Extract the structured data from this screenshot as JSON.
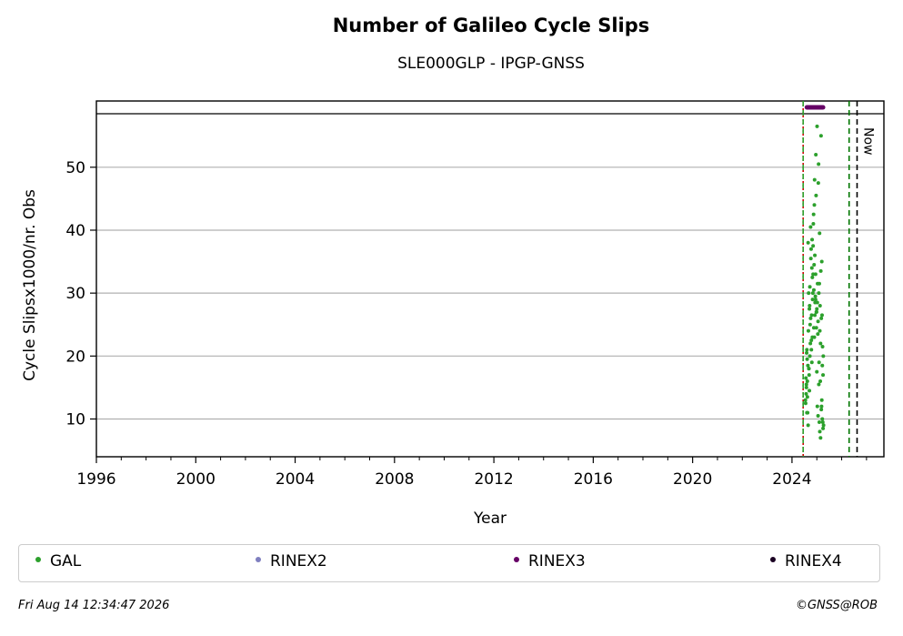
{
  "chart_data": {
    "type": "scatter",
    "title": "Number of Galileo Cycle Slips",
    "subtitle": "SLE000GLP - IPGP-GNSS",
    "xlabel": "Year",
    "ylabel": "Cycle Slipsx1000/nr. Obs",
    "xlim": [
      1996,
      2027.7
    ],
    "ylim": [
      4,
      58.5
    ],
    "x_ticks": [
      "1996",
      "2000",
      "2004",
      "2008",
      "2012",
      "2016",
      "2020",
      "2024"
    ],
    "y_ticks": [
      "10",
      "20",
      "30",
      "40",
      "50"
    ],
    "grid": "horizontal",
    "vertical_lines": [
      {
        "x": 2024.45,
        "color": "#cc0000",
        "style": "dotted"
      },
      {
        "x": 2024.45,
        "color": "#2ca02c",
        "style": "dashed"
      },
      {
        "x": 2026.3,
        "color": "#007700",
        "style": "dashed"
      },
      {
        "x": 2026.62,
        "color": "#000000",
        "style": "dashed",
        "label": "Now"
      }
    ],
    "rinex3_band": {
      "x_start": 2024.6,
      "x_end": 2025.25,
      "color": "#660066"
    },
    "series": [
      {
        "name": "GAL",
        "color": "#2ca02c",
        "x": [
          2024.55,
          2024.58,
          2024.6,
          2024.62,
          2024.65,
          2024.68,
          2024.7,
          2024.72,
          2024.75,
          2024.78,
          2024.8,
          2024.83,
          2024.85,
          2024.88,
          2024.9,
          2024.93,
          2024.95,
          2024.98,
          2025.0,
          2025.02,
          2025.05,
          2025.08,
          2025.1,
          2025.12,
          2025.15,
          2025.18,
          2025.2,
          2025.22,
          2025.25,
          2025.27,
          2024.56,
          2024.61,
          2024.66,
          2024.71,
          2024.76,
          2024.81,
          2024.86,
          2024.91,
          2024.96,
          2025.01,
          2025.06,
          2025.11,
          2025.16,
          2025.21,
          2025.26,
          2024.57,
          2024.63,
          2024.69,
          2024.74,
          2024.79,
          2024.84,
          2024.89,
          2024.94,
          2024.99,
          2025.04,
          2025.09,
          2025.14,
          2025.19,
          2025.24,
          2024.59,
          2024.64,
          2024.73,
          2024.82,
          2024.92,
          2025.03,
          2025.13,
          2025.23,
          2024.67,
          2024.77,
          2024.87,
          2024.97,
          2025.07,
          2025.17,
          2024.54,
          2024.6,
          2024.7,
          2024.8,
          2024.9,
          2025.0,
          2025.1,
          2025.2,
          2024.65,
          2024.75,
          2024.85,
          2024.95,
          2025.05,
          2025.15,
          2025.25,
          2024.58,
          2024.68,
          2024.78,
          2024.88,
          2024.98,
          2025.08,
          2025.18,
          2024.62,
          2024.72,
          2024.82,
          2024.92,
          2025.02,
          2025.12,
          2025.22
        ],
        "y": [
          12.5,
          15.0,
          21.0,
          13.5,
          9.0,
          18.0,
          27.5,
          31.0,
          26.0,
          22.5,
          34.0,
          29.0,
          37.5,
          30.5,
          44.0,
          28.5,
          33.0,
          24.5,
          17.5,
          12.0,
          10.5,
          15.5,
          9.5,
          8.0,
          7.0,
          11.5,
          13.0,
          10.0,
          8.5,
          9.0,
          16.5,
          19.5,
          24.0,
          28.0,
          35.5,
          38.5,
          41.0,
          48.0,
          52.0,
          56.5,
          47.5,
          39.5,
          33.5,
          26.5,
          20.0,
          14.0,
          11.0,
          17.0,
          22.0,
          26.5,
          30.0,
          34.5,
          29.5,
          27.0,
          23.5,
          19.0,
          16.0,
          12.0,
          9.5,
          20.5,
          18.5,
          25.0,
          32.5,
          36.0,
          31.5,
          28.0,
          21.5,
          30.0,
          37.0,
          42.5,
          45.5,
          50.5,
          55.0,
          13.0,
          11.0,
          14.5,
          19.0,
          23.0,
          27.5,
          31.5,
          35.0,
          38.0,
          40.5,
          33.0,
          29.0,
          25.5,
          22.0,
          17.0,
          15.5,
          18.0,
          21.0,
          24.5,
          27.0,
          30.0,
          26.0,
          16.0,
          20.0,
          23.0,
          26.5,
          28.5,
          24.0,
          18.5
        ]
      },
      {
        "name": "RINEX2",
        "color": "#7f7fbf",
        "x": [],
        "y": []
      },
      {
        "name": "RINEX3",
        "color": "#660066",
        "x": [],
        "y": []
      },
      {
        "name": "RINEX4",
        "color": "#1a0022",
        "x": [],
        "y": []
      }
    ]
  },
  "labels": {
    "now": "Now",
    "timestamp": "Fri Aug 14 12:34:47 2026",
    "copyright": "©GNSS@ROB"
  }
}
